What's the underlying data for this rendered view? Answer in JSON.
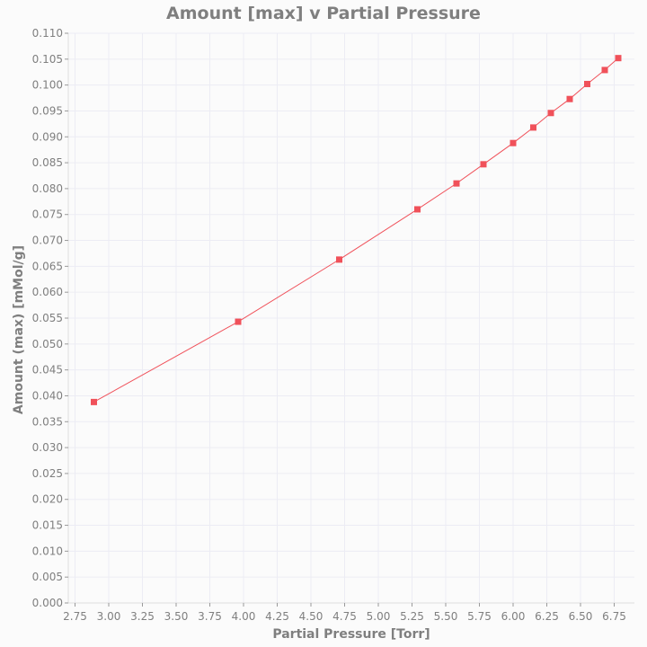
{
  "chart_data": {
    "type": "line",
    "title": "Amount [max] v Partial Pressure",
    "xlabel": "Partial Pressure [Torr]",
    "ylabel": "Amount (max) [mMol/g]",
    "xlim": [
      2.7,
      6.9
    ],
    "ylim": [
      0.0,
      0.11
    ],
    "x_ticks": [
      "2.75",
      "3.00",
      "3.25",
      "3.50",
      "3.75",
      "4.00",
      "4.25",
      "4.50",
      "4.75",
      "5.00",
      "5.25",
      "5.50",
      "5.75",
      "6.00",
      "6.25",
      "6.50",
      "6.75"
    ],
    "y_ticks": [
      "0.000",
      "0.005",
      "0.010",
      "0.015",
      "0.020",
      "0.025",
      "0.030",
      "0.035",
      "0.040",
      "0.045",
      "0.050",
      "0.055",
      "0.060",
      "0.065",
      "0.070",
      "0.075",
      "0.080",
      "0.085",
      "0.090",
      "0.095",
      "0.100",
      "0.105",
      "0.110"
    ],
    "grid": true,
    "series": [
      {
        "color": "#f0515a",
        "marker": "square",
        "x": [
          2.89,
          3.96,
          4.71,
          5.29,
          5.58,
          5.78,
          6.0,
          6.15,
          6.28,
          6.42,
          6.55,
          6.68,
          6.78
        ],
        "y": [
          0.0388,
          0.0543,
          0.0663,
          0.076,
          0.081,
          0.0847,
          0.0888,
          0.0918,
          0.0946,
          0.0973,
          0.1002,
          0.1029,
          0.1052
        ]
      }
    ]
  }
}
